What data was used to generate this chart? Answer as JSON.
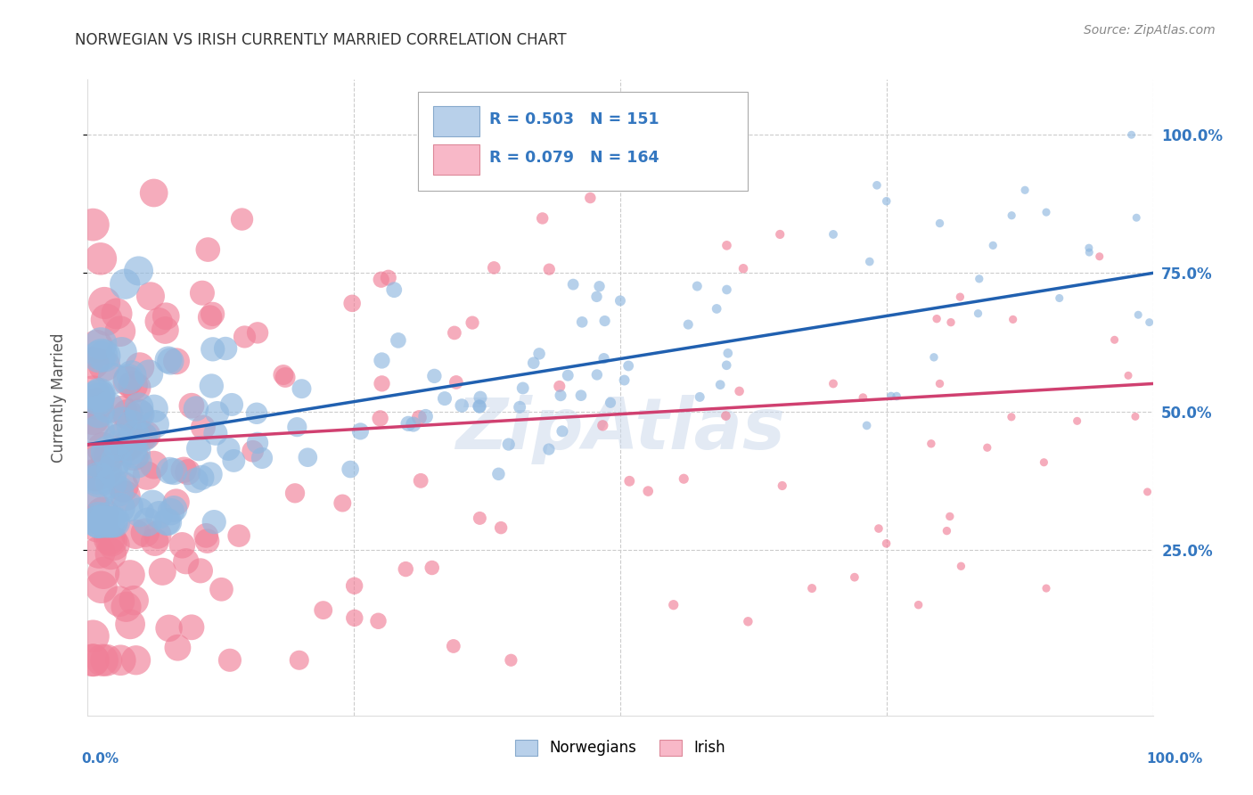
{
  "title": "NORWEGIAN VS IRISH CURRENTLY MARRIED CORRELATION CHART",
  "source": "Source: ZipAtlas.com",
  "ylabel": "Currently Married",
  "background_color": "#ffffff",
  "grid_color": "#cccccc",
  "title_color": "#333333",
  "right_axis_color": "#3477c0",
  "norwegian_color": "#8fb8e0",
  "irish_color": "#f08098",
  "legend_nor_color": "#b8d0ea",
  "legend_ire_color": "#f8b8c8",
  "norwegian_line_color": "#2060b0",
  "irish_line_color": "#d04070",
  "ytick_labels": [
    "25.0%",
    "50.0%",
    "75.0%",
    "100.0%"
  ],
  "ytick_positions": [
    0.25,
    0.5,
    0.75,
    1.0
  ],
  "xlim": [
    0.0,
    1.0
  ],
  "ylim": [
    -0.05,
    1.1
  ],
  "norwegian_R": 0.503,
  "norwegian_N": 151,
  "irish_R": 0.079,
  "irish_N": 164,
  "nor_line_x0": 0.0,
  "nor_line_y0": 0.44,
  "nor_line_x1": 1.0,
  "nor_line_y1": 0.75,
  "ire_line_x0": 0.0,
  "ire_line_y0": 0.44,
  "ire_line_x1": 1.0,
  "ire_line_y1": 0.55,
  "watermark_text": "ZipAtlas",
  "seed": 1234
}
